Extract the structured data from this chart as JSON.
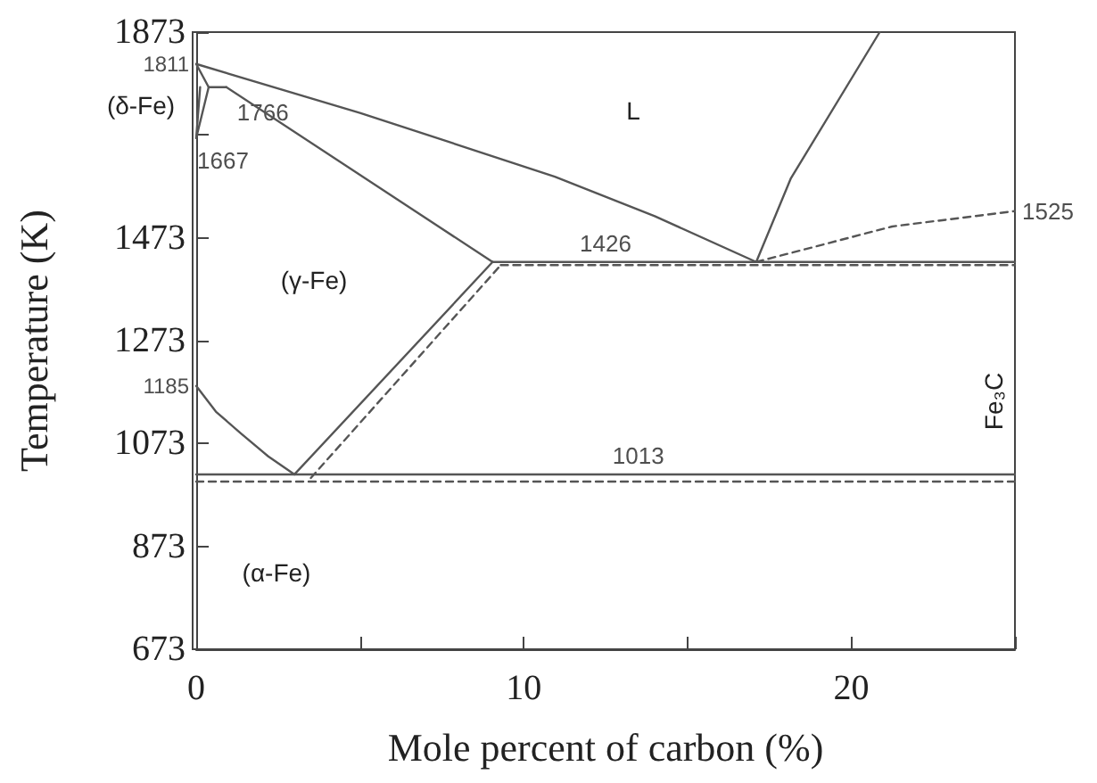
{
  "chart_data": {
    "type": "line",
    "xlabel": "Mole percent of carbon (%)",
    "ylabel": "Temperature (K)",
    "xlim": [
      0,
      25
    ],
    "xticks": [
      0,
      {
        "value": 5,
        "label": null
      },
      10,
      {
        "value": 15,
        "label": null
      },
      20,
      {
        "value": 25,
        "label": null
      }
    ],
    "ylim": [
      673,
      1873
    ],
    "yticks": [
      673,
      873,
      1073,
      1273,
      1473,
      {
        "value": 1673,
        "label": null
      },
      1873
    ],
    "grid": false,
    "marker": "none",
    "line_style": "solid",
    "series": [
      {
        "color": "#555555",
        "x": [
          0,
          5,
          10.95,
          14,
          17.1
        ],
        "values": [
          1811,
          1716,
          1592,
          1515,
          1426
        ]
      },
      {
        "color": "#555555",
        "x": [
          17.1,
          18.16,
          20.87
        ],
        "values": [
          1426,
          1589,
          1873
        ]
      },
      {
        "color": "#555555",
        "line_style": "dashed",
        "x": [
          17.1,
          21.25,
          25
        ],
        "values": [
          1426,
          1495,
          1525
        ]
      },
      {
        "color": "#555555",
        "x": [
          0,
          0.38,
          0.92
        ],
        "values": [
          1811,
          1766,
          1766
        ]
      },
      {
        "color": "#555555",
        "x": [
          0.92,
          9.05
        ],
        "values": [
          1766,
          1426
        ]
      },
      {
        "color": "#555555",
        "x": [
          0,
          0.38
        ],
        "values": [
          1667,
          1766
        ]
      },
      {
        "color": "#555555",
        "x": [
          0,
          0.12
        ],
        "values": [
          1667,
          1766
        ]
      },
      {
        "color": "#555555",
        "x": [
          9.05,
          25
        ],
        "values": [
          1426,
          1426
        ]
      },
      {
        "color": "#555555",
        "line_style": "dashed",
        "x": [
          9.3,
          25
        ],
        "values": [
          1420,
          1420
        ]
      },
      {
        "color": "#555555",
        "x": [
          3.0,
          9.05
        ],
        "values": [
          1013,
          1426
        ]
      },
      {
        "color": "#555555",
        "line_style": "dashed",
        "x": [
          3.5,
          9.3
        ],
        "values": [
          1006,
          1420
        ]
      },
      {
        "color": "#555555",
        "x": [
          0,
          0.6,
          1.36,
          2.2,
          3.0
        ],
        "values": [
          1185,
          1135,
          1093,
          1048,
          1013
        ]
      },
      {
        "color": "#555555",
        "x": [
          0,
          25
        ],
        "values": [
          1013,
          1013
        ]
      },
      {
        "color": "#555555",
        "line_style": "dashed",
        "x": [
          0,
          25
        ],
        "values": [
          999,
          999
        ]
      }
    ],
    "annotations": [
      {
        "text": "1811",
        "x": 0,
        "y": 1811
      },
      "(δ-Fe)",
      {
        "text": "1766",
        "x": 0.92,
        "y": 1766
      },
      {
        "text": "1667",
        "x": 0,
        "y": 1667
      },
      "L",
      "(γ-Fe)",
      {
        "text": "1426",
        "x": 12.5,
        "y": 1426
      },
      {
        "text": "1525",
        "x": 25,
        "y": 1525
      },
      "Fe₃C",
      {
        "text": "1185",
        "x": 0,
        "y": 1185
      },
      {
        "text": "1013",
        "x": 13.5,
        "y": 1013
      },
      "(α-Fe)"
    ]
  }
}
